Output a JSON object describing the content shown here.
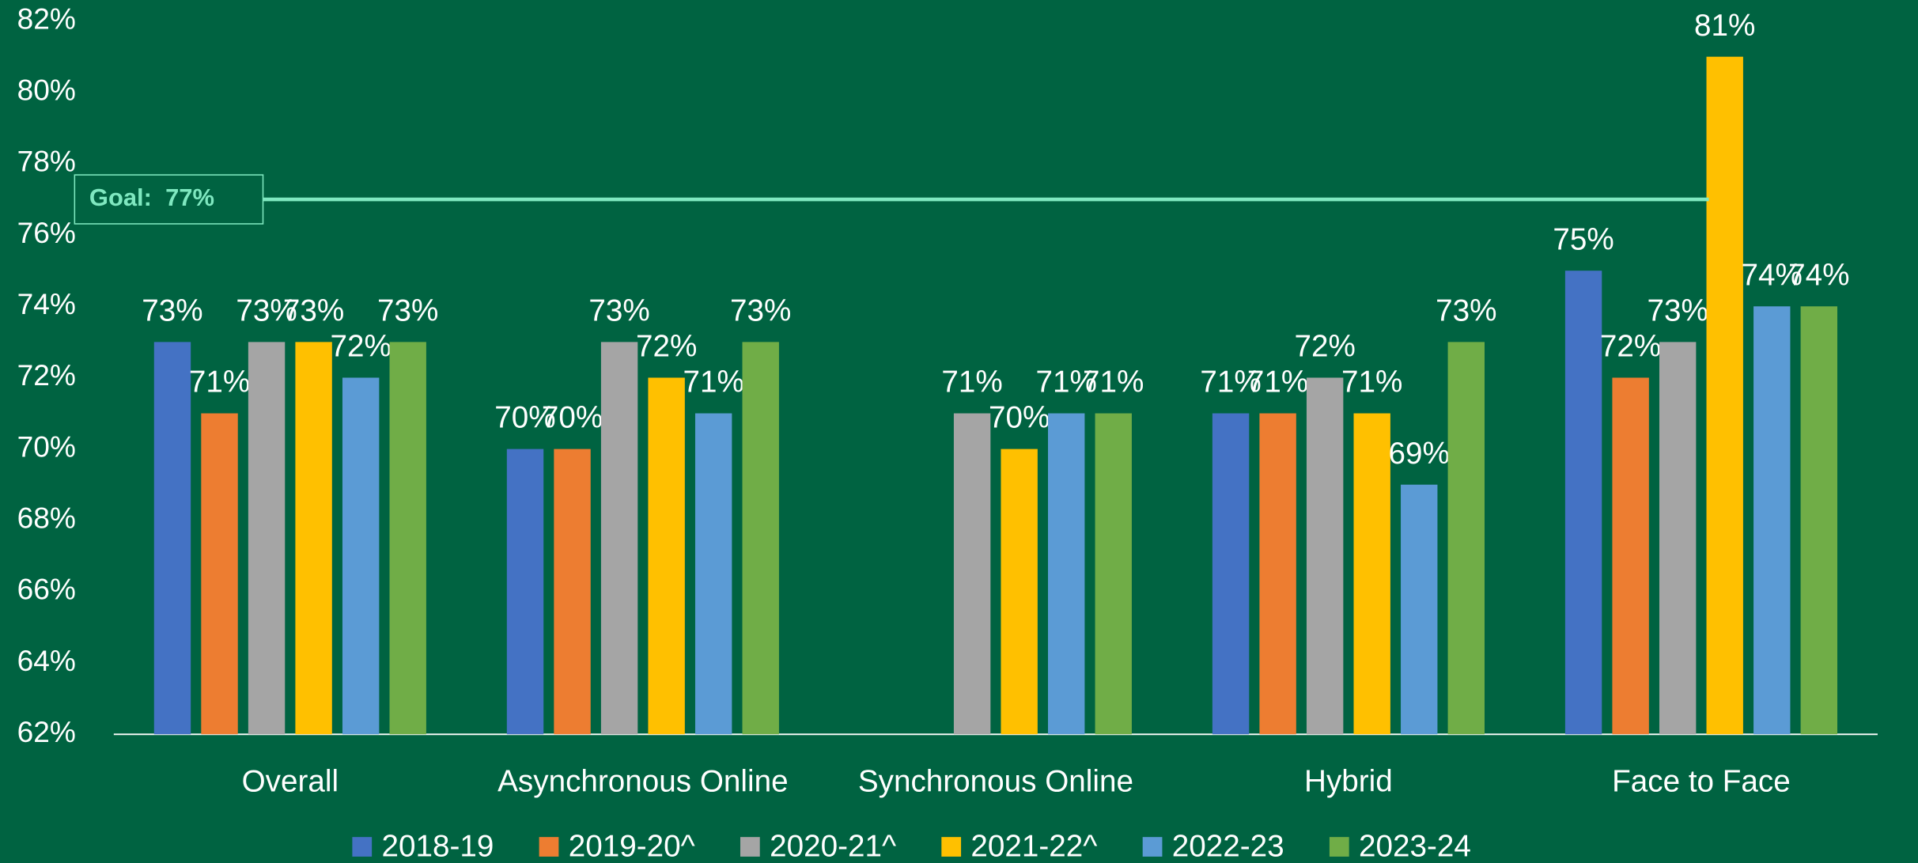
{
  "chart_data": {
    "type": "bar",
    "categories": [
      "Overall",
      "Asynchronous Online",
      "Synchronous Online",
      "Hybrid",
      "Face to Face"
    ],
    "series": [
      {
        "name": "2018-19",
        "color": "#4472c4",
        "values": [
          73,
          70,
          null,
          71,
          75
        ],
        "value_labels": [
          "73%",
          "70%",
          null,
          "71%",
          "75%"
        ]
      },
      {
        "name": "2019-20^",
        "color": "#ed7d31",
        "values": [
          71,
          70,
          null,
          71,
          72
        ],
        "value_labels": [
          "71%",
          "70%",
          null,
          "71%",
          "72%"
        ]
      },
      {
        "name": "2020-21^",
        "color": "#a5a5a5",
        "values": [
          73,
          73,
          71,
          72,
          73
        ],
        "value_labels": [
          "73%",
          "73%",
          "71%",
          "72%",
          "73%"
        ]
      },
      {
        "name": "2021-22^",
        "color": "#ffc000",
        "values": [
          73,
          72,
          70,
          71,
          81
        ],
        "value_labels": [
          "73%",
          "72%",
          "70%",
          "71%",
          "81%"
        ]
      },
      {
        "name": "2022-23",
        "color": "#5b9bd5",
        "values": [
          72,
          71,
          71,
          69,
          74
        ],
        "value_labels": [
          "72%",
          "71%",
          "71%",
          "69%",
          "74%"
        ]
      },
      {
        "name": "2023-24",
        "color": "#70ad47",
        "values": [
          73,
          73,
          71,
          73,
          74
        ],
        "value_labels": [
          "73%",
          "73%",
          "71%",
          "73%",
          "74%"
        ]
      }
    ],
    "ylim": [
      62,
      82
    ],
    "yticks": [
      {
        "value": 62,
        "label": "62%"
      },
      {
        "value": 64,
        "label": "64%"
      },
      {
        "value": 66,
        "label": "66%"
      },
      {
        "value": 68,
        "label": "68%"
      },
      {
        "value": 70,
        "label": "70%"
      },
      {
        "value": 72,
        "label": "72%"
      },
      {
        "value": 74,
        "label": "74%"
      },
      {
        "value": 76,
        "label": "76%"
      },
      {
        "value": 78,
        "label": "78%"
      },
      {
        "value": 80,
        "label": "80%"
      },
      {
        "value": 82,
        "label": "82%"
      }
    ],
    "goal": {
      "value": 77,
      "label": "Goal:  77%",
      "color": "#7fe8c0"
    },
    "legend": "bottom"
  }
}
